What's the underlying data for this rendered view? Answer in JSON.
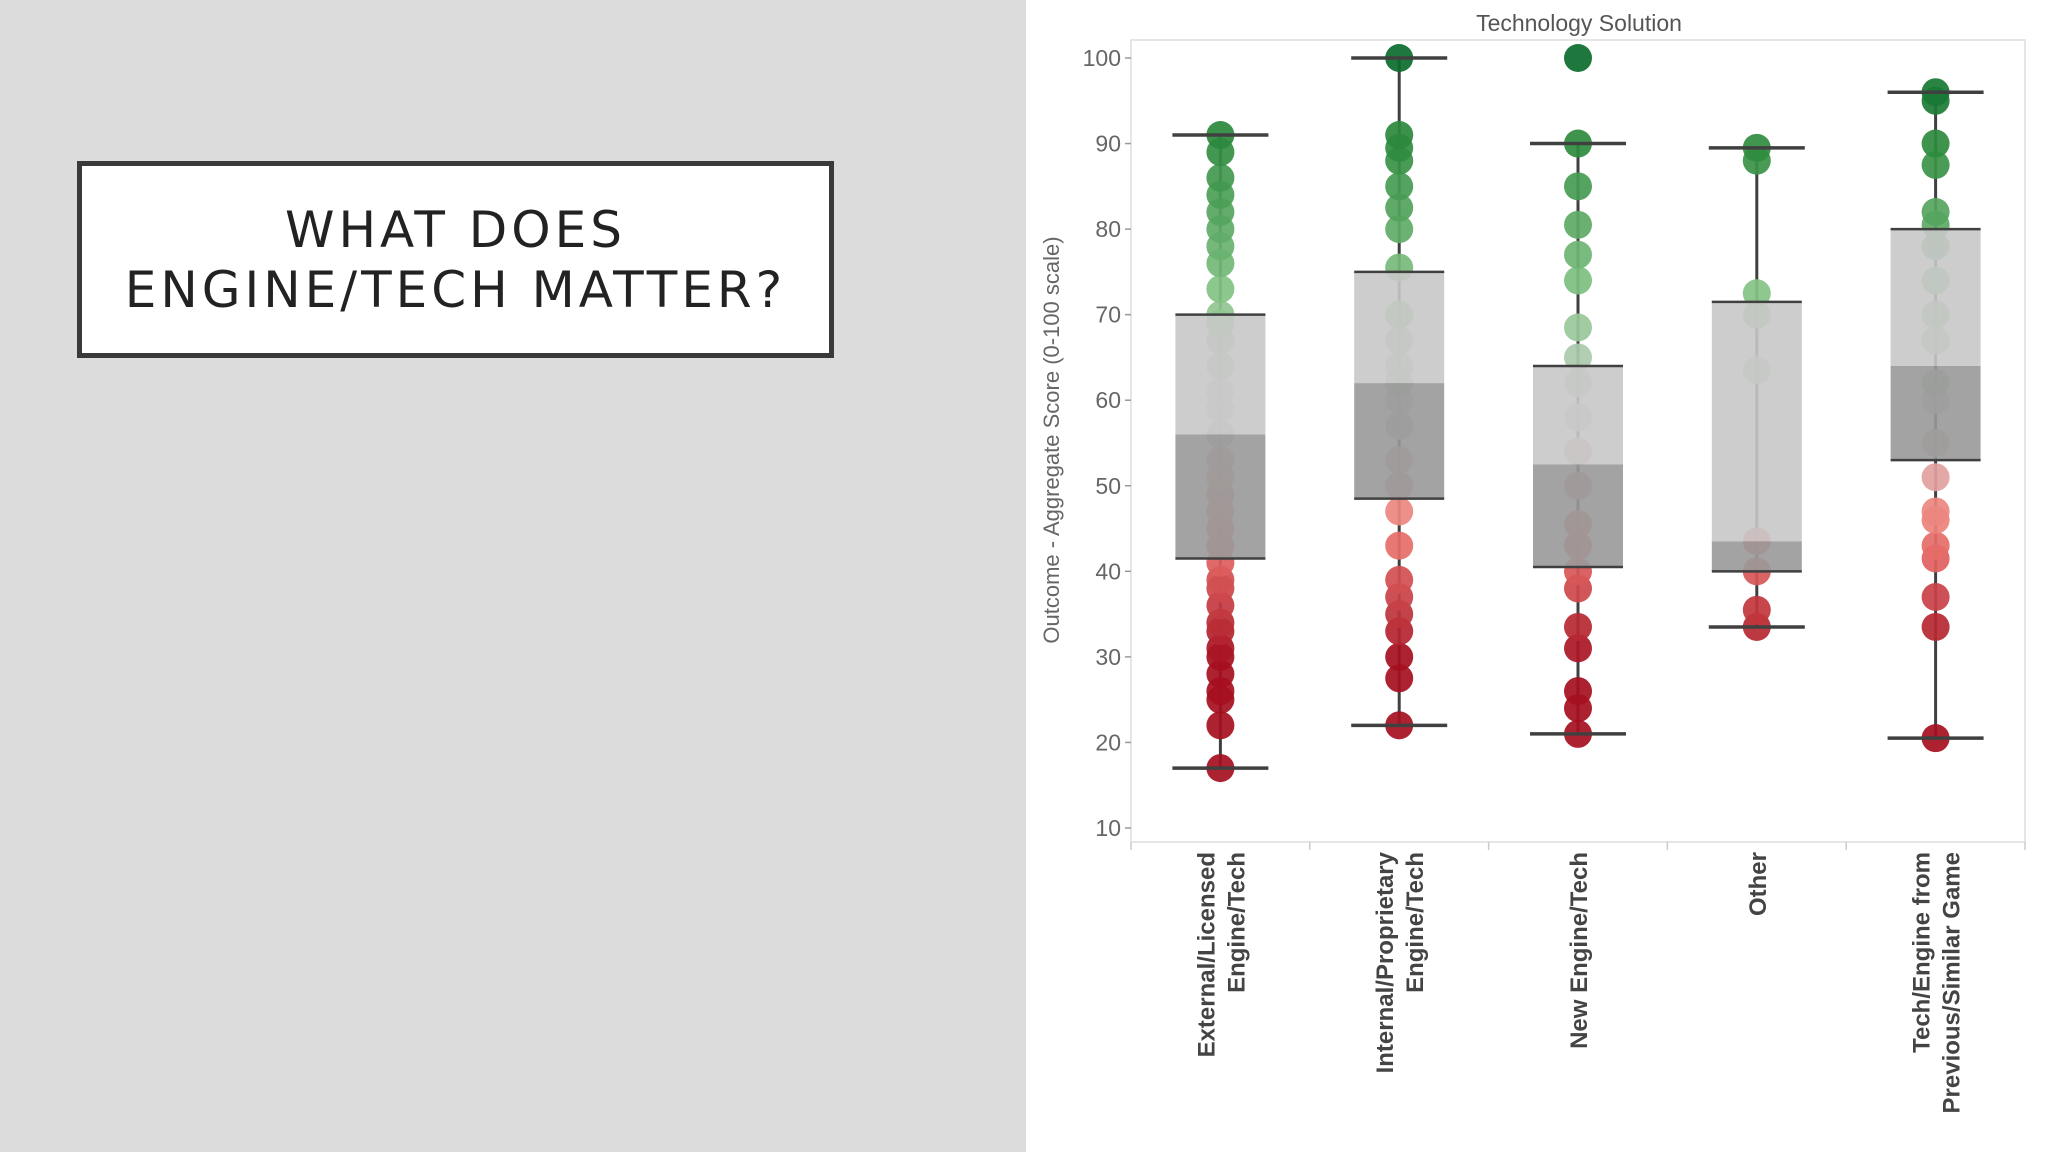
{
  "slide": {
    "title_lines": [
      "WHAT DOES",
      "ENGINE/TECH MATTER?"
    ]
  },
  "chart_data": {
    "type": "box",
    "title": "Technology Solution",
    "ylabel": "Outcome - Aggregate Score (0-100 scale)",
    "ylim": [
      10,
      100
    ],
    "yticks": [
      10,
      20,
      30,
      40,
      50,
      60,
      70,
      80,
      90,
      100
    ],
    "categories": [
      "External/Licensed Engine/Tech",
      "Internal/Proprietary Engine/Tech",
      "New Engine/Tech",
      "Other",
      "Tech/Engine from Previous/Similar Game"
    ],
    "category_label_lines": [
      [
        "External/Licensed",
        "Engine/Tech"
      ],
      [
        "Internal/Proprietary",
        "Engine/Tech"
      ],
      [
        "New Engine/Tech"
      ],
      [
        "Other"
      ],
      [
        "Tech/Engine from",
        "Previous/Similar Game"
      ]
    ],
    "boxes": [
      {
        "min": 17,
        "q1": 41.5,
        "median": 56,
        "q3": 70,
        "max": 91
      },
      {
        "min": 22,
        "q1": 48.5,
        "median": 62,
        "q3": 75,
        "max": 100
      },
      {
        "min": 21,
        "q1": 40.5,
        "median": 52.5,
        "q3": 64,
        "max": 90
      },
      {
        "min": 33.5,
        "q1": 40,
        "median": 43.5,
        "q3": 71.5,
        "max": 89.5
      },
      {
        "min": 20.5,
        "q1": 53,
        "median": 64,
        "q3": 80,
        "max": 96
      }
    ],
    "points": [
      [
        17,
        22,
        25,
        26,
        28,
        30,
        31,
        33,
        34,
        36,
        38,
        39,
        41,
        43,
        45,
        47,
        49,
        51,
        53,
        56,
        59,
        61,
        64,
        67,
        69,
        70,
        73,
        76,
        78,
        80,
        82,
        84,
        86,
        89,
        91
      ],
      [
        22,
        27.5,
        30,
        33,
        35,
        37,
        39,
        43,
        47,
        50,
        53,
        57,
        60,
        62,
        64,
        67,
        70,
        75.5,
        80,
        82.5,
        85,
        88,
        89.5,
        91,
        100
      ],
      [
        21,
        24,
        26,
        31,
        33.5,
        38,
        40,
        43,
        45.5,
        50,
        54,
        58,
        62,
        65,
        68.5,
        74,
        77,
        80.5,
        85,
        90,
        100
      ],
      [
        33.5,
        35.5,
        40,
        43.5,
        63.5,
        70,
        72.5,
        88,
        89.5
      ],
      [
        20.5,
        33.5,
        37,
        41.5,
        43,
        46,
        47,
        51,
        55,
        60,
        62,
        67,
        70,
        74,
        78,
        80.5,
        82,
        87.5,
        90,
        95,
        96
      ]
    ],
    "colors": {
      "low": "#a50f1f",
      "mid_red": "#f07a72",
      "mid": "#cfcfcf",
      "mid_green": "#87c587",
      "high": "#0b6b2b",
      "box_upper": "#c8c8c8",
      "box_lower": "#999999",
      "whisker": "#404040"
    },
    "grid": false
  }
}
